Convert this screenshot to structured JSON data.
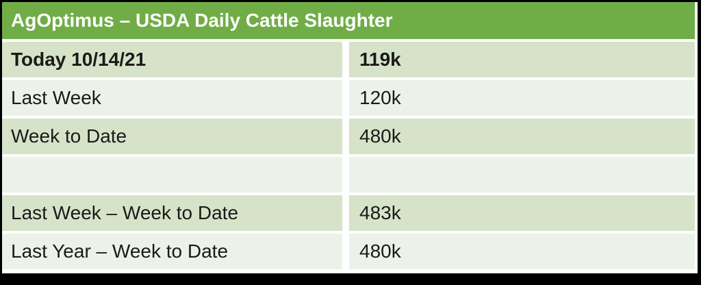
{
  "title": "AgOptimus – USDA Daily Cattle Slaughter",
  "colors": {
    "header_bg": "#70AD47",
    "band_dark": "#D7E3C9",
    "band_light": "#ECF2E8",
    "frame": "#000000",
    "text": "#1A1A1A",
    "title_text": "#FFFFFF"
  },
  "rows": [
    {
      "label": "Today 10/14/21",
      "value": "119k",
      "emphasis": true
    },
    {
      "label": "Last Week",
      "value": "120k",
      "emphasis": false
    },
    {
      "label": "Week to Date",
      "value": "480k",
      "emphasis": false
    },
    {
      "label": "",
      "value": "",
      "emphasis": false
    },
    {
      "label": "Last Week – Week to Date",
      "value": "483k",
      "emphasis": false
    },
    {
      "label": "Last Year – Week to Date",
      "value": "480k",
      "emphasis": false
    }
  ],
  "chart_data": {
    "type": "table",
    "title": "AgOptimus – USDA Daily Cattle Slaughter",
    "categories": [
      "Today 10/14/21",
      "Last Week",
      "Week to Date",
      "Last Week – Week to Date",
      "Last Year – Week to Date"
    ],
    "values_display": [
      "119k",
      "120k",
      "480k",
      "483k",
      "480k"
    ],
    "values_thousand_head": [
      119,
      120,
      480,
      483,
      480
    ],
    "unit": "k",
    "layout": "two-column table, green merged header row, alternating light-green banded rows, blank spacer row between daily and comparison figures"
  }
}
